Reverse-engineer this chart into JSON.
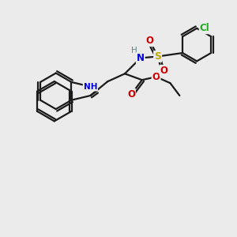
{
  "background_color": "#ebebeb",
  "bond_color": "#1a1a1a",
  "atom_colors": {
    "N": "#0000e0",
    "O": "#cc0000",
    "S": "#bbaa00",
    "Cl": "#22aa22",
    "H": "#558888"
  },
  "figsize": [
    3.0,
    3.0
  ],
  "dpi": 100,
  "lw": 1.6,
  "double_sep": 2.8
}
